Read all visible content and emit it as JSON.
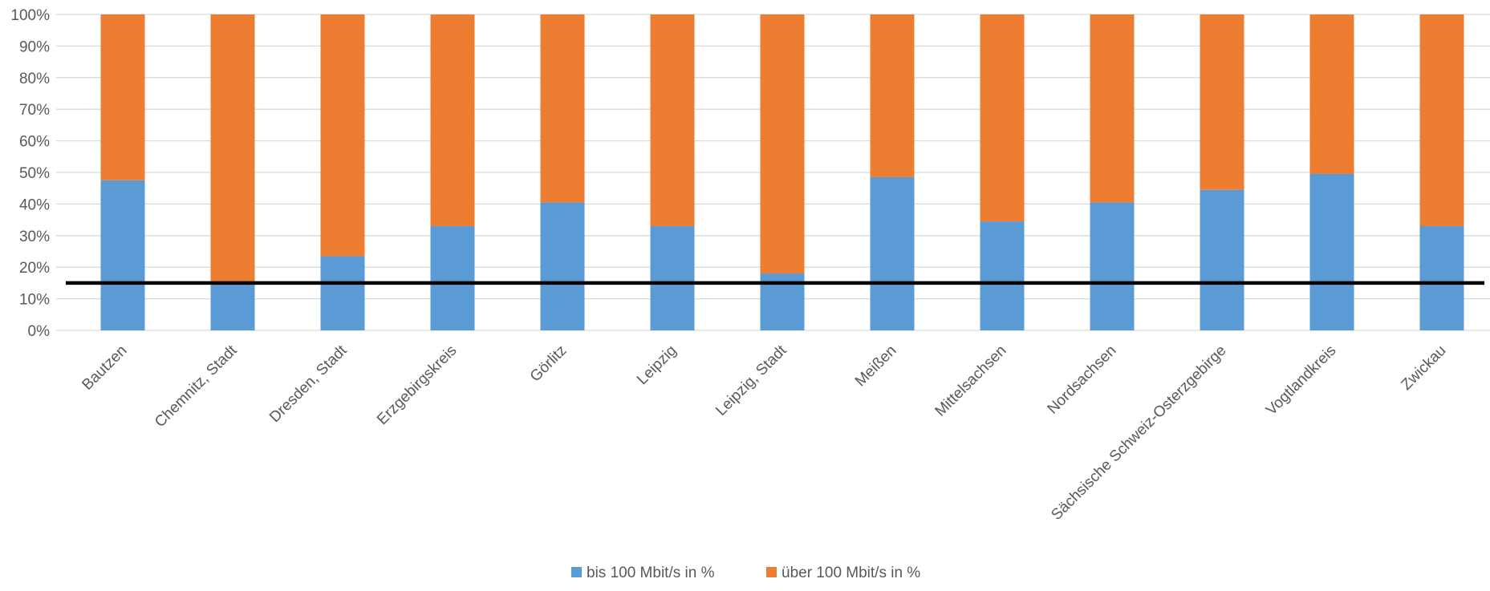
{
  "chart_data": {
    "type": "bar",
    "stacked": true,
    "percent_stacked": true,
    "categories": [
      "Bautzen",
      "Chemnitz, Stadt",
      "Dresden, Stadt",
      "Erzgebirgskreis",
      "Görlitz",
      "Leipzig",
      "Leipzig, Stadt",
      "Meißen",
      "Mittelsachsen",
      "Nordsachsen",
      "Sächsische Schweiz-Osterzgebirge",
      "Vogtlandkreis",
      "Zwickau"
    ],
    "series": [
      {
        "name": "bis 100 Mbit/s in %",
        "color": "#5B9BD5",
        "values": [
          47.5,
          15.5,
          23.5,
          33.0,
          40.5,
          33.0,
          18.0,
          48.5,
          34.5,
          40.5,
          44.5,
          49.5,
          33.0
        ]
      },
      {
        "name": "über 100 Mbit/s in %",
        "color": "#ED7D31",
        "values": [
          52.5,
          84.5,
          76.5,
          67.0,
          59.5,
          67.0,
          82.0,
          51.5,
          65.5,
          59.5,
          55.5,
          50.5,
          67.0
        ]
      }
    ],
    "reference_line": {
      "value": 15,
      "color": "#000000"
    },
    "ylim": [
      0,
      100
    ],
    "yticks": [
      "0%",
      "10%",
      "20%",
      "30%",
      "40%",
      "50%",
      "60%",
      "70%",
      "80%",
      "90%",
      "100%"
    ],
    "grid": true,
    "legend_position": "bottom",
    "title": "",
    "xlabel": "",
    "ylabel": ""
  }
}
